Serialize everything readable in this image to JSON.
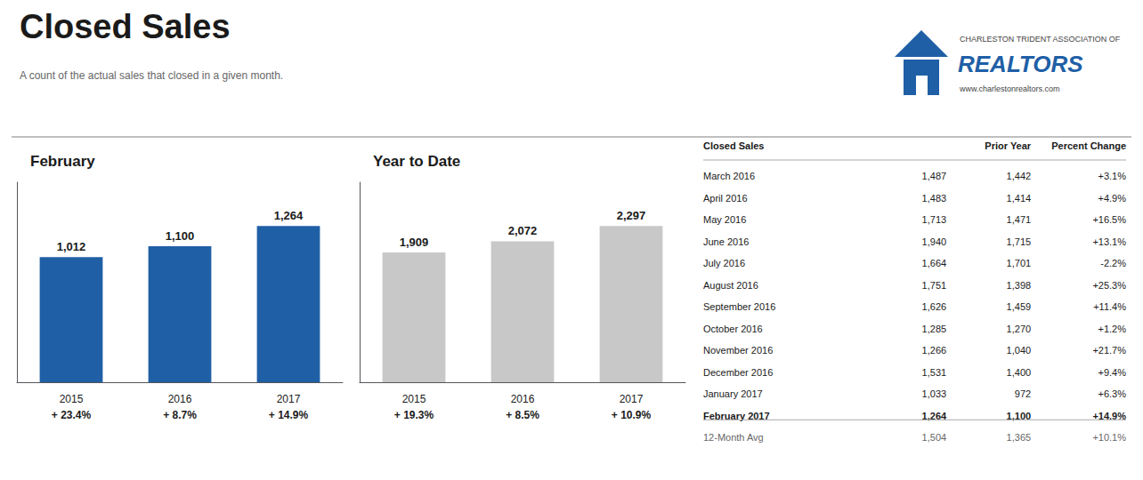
{
  "title": "Closed Sales",
  "subtitle": "A count of the actual sales that closed in a given month.",
  "chart_data": [
    {
      "type": "bar",
      "title": "February",
      "categories": [
        "2015",
        "2016",
        "2017"
      ],
      "values": [
        1012,
        1100,
        1264
      ],
      "value_labels": [
        "1,012",
        "1,100",
        "1,264"
      ],
      "annotations": [
        "+ 23.4%",
        "+ 8.7%",
        "+ 14.9%"
      ],
      "color": "#1f5fa6",
      "data_labels": true,
      "ylim": [
        0,
        1617.92
      ],
      "tick_labels": "x",
      "grid": false
    },
    {
      "type": "bar",
      "title": "Year to Date",
      "categories": [
        "2015",
        "2016",
        "2017"
      ],
      "values": [
        1909,
        2072,
        2297
      ],
      "value_labels": [
        "1,909",
        "2,072",
        "2,297"
      ],
      "annotations": [
        "+ 19.3%",
        "+ 8.5%",
        "+ 10.9%"
      ],
      "color": "#c8c8c8",
      "data_labels": true,
      "ylim": [
        0,
        2940.16
      ],
      "tick_labels": "x",
      "grid": false
    }
  ],
  "table": {
    "headers": [
      "Closed Sales",
      "Prior Year",
      "Percent Change"
    ],
    "rows": [
      {
        "cells": [
          "March 2016",
          "1,487",
          "1,442",
          "+3.1%"
        ],
        "bold": false
      },
      {
        "cells": [
          "April 2016",
          "1,483",
          "1,414",
          "+4.9%"
        ],
        "bold": false
      },
      {
        "cells": [
          "May 2016",
          "1,713",
          "1,471",
          "+16.5%"
        ],
        "bold": false
      },
      {
        "cells": [
          "June 2016",
          "1,940",
          "1,715",
          "+13.1%"
        ],
        "bold": false
      },
      {
        "cells": [
          "July 2016",
          "1,664",
          "1,701",
          "-2.2%"
        ],
        "bold": false
      },
      {
        "cells": [
          "August 2016",
          "1,751",
          "1,398",
          "+25.3%"
        ],
        "bold": false
      },
      {
        "cells": [
          "September 2016",
          "1,626",
          "1,459",
          "+11.4%"
        ],
        "bold": false
      },
      {
        "cells": [
          "October 2016",
          "1,285",
          "1,270",
          "+1.2%"
        ],
        "bold": false
      },
      {
        "cells": [
          "November 2016",
          "1,266",
          "1,040",
          "+21.7%"
        ],
        "bold": false
      },
      {
        "cells": [
          "December 2016",
          "1,531",
          "1,400",
          "+9.4%"
        ],
        "bold": false
      },
      {
        "cells": [
          "January 2017",
          "1,033",
          "972",
          "+6.3%"
        ],
        "bold": false
      },
      {
        "cells": [
          "February 2017",
          "1,264",
          "1,100",
          "+14.9%"
        ],
        "bold": true
      },
      {
        "cells": [
          "12-Month Avg",
          "1,504",
          "1,365",
          "+10.1%"
        ],
        "bold": false
      }
    ]
  },
  "logo": {
    "color": "#1f5fa6",
    "texts": [
      "CHARLESTON TRIDENT ASSOCIATION OF",
      "REALTORS",
      "www.charlestonrealtors.com"
    ]
  }
}
